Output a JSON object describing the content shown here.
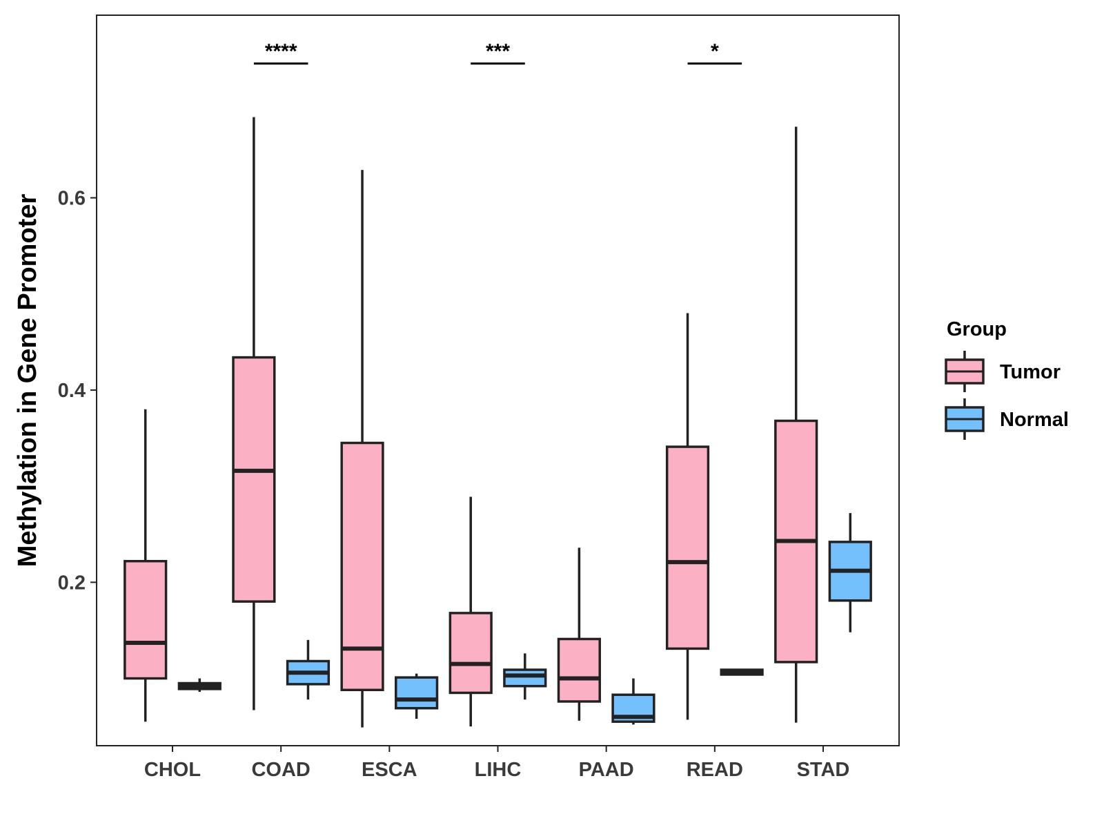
{
  "chart_data": {
    "type": "boxplot",
    "title": "",
    "xlabel": "",
    "ylabel": "Methylation in Gene Promoter",
    "ylim": [
      0.03,
      0.79
    ],
    "yticks": [
      0.2,
      0.4,
      0.6
    ],
    "ytick_labels": [
      "0.2",
      "0.4",
      "0.6"
    ],
    "grid": false,
    "categories": [
      "CHOL",
      "COAD",
      "ESCA",
      "LIHC",
      "PAAD",
      "READ",
      "STAD"
    ],
    "legend": {
      "title": "Group",
      "placement": "right"
    },
    "series": [
      {
        "name": "Tumor",
        "color": "#fbb0c3",
        "boxes": [
          {
            "min": 0.055,
            "q1": 0.1,
            "median": 0.137,
            "q3": 0.222,
            "max": 0.38
          },
          {
            "min": 0.067,
            "q1": 0.18,
            "median": 0.316,
            "q3": 0.434,
            "max": 0.684
          },
          {
            "min": 0.049,
            "q1": 0.088,
            "median": 0.131,
            "q3": 0.345,
            "max": 0.629
          },
          {
            "min": 0.05,
            "q1": 0.085,
            "median": 0.115,
            "q3": 0.168,
            "max": 0.289
          },
          {
            "min": 0.056,
            "q1": 0.076,
            "median": 0.1,
            "q3": 0.141,
            "max": 0.236
          },
          {
            "min": 0.057,
            "q1": 0.131,
            "median": 0.221,
            "q3": 0.341,
            "max": 0.48
          },
          {
            "min": 0.054,
            "q1": 0.117,
            "median": 0.243,
            "q3": 0.368,
            "max": 0.674
          }
        ]
      },
      {
        "name": "Normal",
        "color": "#74c0fc",
        "boxes": [
          {
            "min": 0.086,
            "q1": 0.089,
            "median": 0.092,
            "q3": 0.095,
            "max": 0.1
          },
          {
            "min": 0.078,
            "q1": 0.094,
            "median": 0.106,
            "q3": 0.118,
            "max": 0.14
          },
          {
            "min": 0.058,
            "q1": 0.069,
            "median": 0.078,
            "q3": 0.101,
            "max": 0.105
          },
          {
            "min": 0.078,
            "q1": 0.092,
            "median": 0.103,
            "q3": 0.109,
            "max": 0.126
          },
          {
            "min": 0.052,
            "q1": 0.055,
            "median": 0.06,
            "q3": 0.083,
            "max": 0.1
          },
          {
            "min": 0.103,
            "q1": 0.104,
            "median": 0.107,
            "q3": 0.109,
            "max": 0.11
          },
          {
            "min": 0.148,
            "q1": 0.181,
            "median": 0.212,
            "q3": 0.242,
            "max": 0.272
          }
        ]
      }
    ],
    "annotations": [
      {
        "category": "COAD",
        "label": "****"
      },
      {
        "category": "LIHC",
        "label": "***"
      },
      {
        "category": "READ",
        "label": "*"
      }
    ]
  }
}
